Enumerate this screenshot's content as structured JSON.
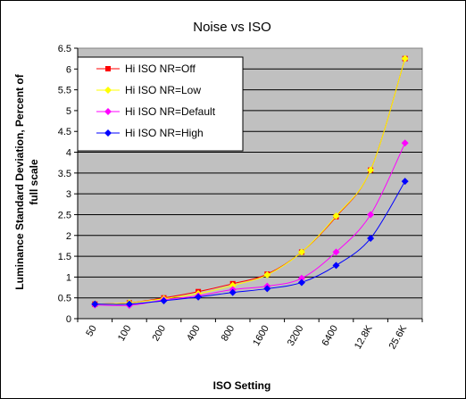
{
  "chart_data": {
    "type": "line",
    "title": "Noise  vs ISO",
    "xlabel": "ISO Setting",
    "ylabel_lines": [
      "Luminance Standard Deviation, Percent of",
      "full scale"
    ],
    "categories": [
      "50",
      "100",
      "200",
      "400",
      "800",
      "1600",
      "3200",
      "6400",
      "12.8K",
      "25.6K"
    ],
    "ylim": [
      0,
      6.5
    ],
    "ytick_step": 0.5,
    "yticks": [
      "0",
      "0.5",
      "1",
      "1.5",
      "2",
      "2.5",
      "3",
      "3.5",
      "4",
      "4.5",
      "5",
      "5.5",
      "6",
      "6.5"
    ],
    "grid": "horizontal",
    "plot_background": "#c0c0c0",
    "legend_position": "top-left",
    "series": [
      {
        "name": "Hi ISO NR=Off",
        "color": "#ff0000",
        "marker": "square",
        "values": [
          0.35,
          0.38,
          0.5,
          0.65,
          0.84,
          1.07,
          1.6,
          2.45,
          3.57,
          6.25
        ]
      },
      {
        "name": "Hi ISO NR=Low",
        "color": "#ffff00",
        "marker": "diamond",
        "values": [
          0.35,
          0.38,
          0.48,
          0.6,
          0.8,
          1.05,
          1.6,
          2.47,
          3.57,
          6.25
        ]
      },
      {
        "name": "Hi ISO NR=Default",
        "color": "#ff00ff",
        "marker": "diamond",
        "values": [
          0.33,
          0.32,
          0.45,
          0.55,
          0.7,
          0.78,
          0.97,
          1.6,
          2.5,
          4.22
        ]
      },
      {
        "name": "Hi ISO NR=High",
        "color": "#0000ff",
        "marker": "diamond",
        "values": [
          0.35,
          0.35,
          0.43,
          0.52,
          0.63,
          0.72,
          0.87,
          1.28,
          1.93,
          3.3
        ]
      }
    ]
  }
}
